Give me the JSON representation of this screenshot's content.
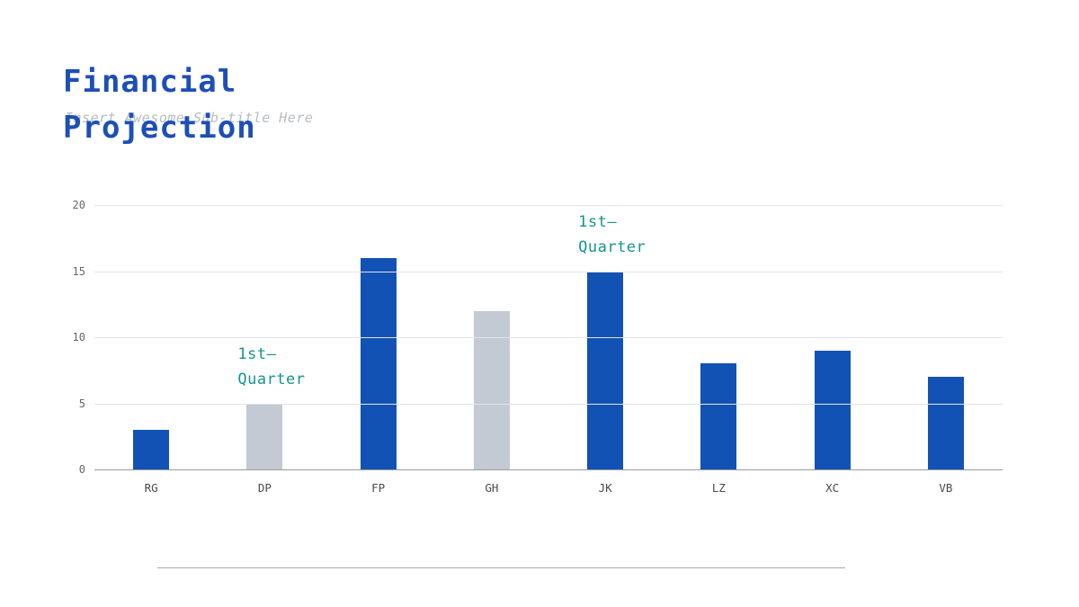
{
  "slide": {
    "title_line1": "Financial",
    "title_line2": "Projection",
    "subtitle": "Insert Awesome Sub-title Here"
  },
  "colors": {
    "title_blue": "#1d4fb5",
    "bar_blue": "#1252b4",
    "bar_gray": "#c3cad4",
    "annotation_teal": "#15948e",
    "gridline": "#e3e3e3",
    "axis_line": "#9b9b9b"
  },
  "chart_data": {
    "type": "bar",
    "categories": [
      "RG",
      "DP",
      "FP",
      "GH",
      "JK",
      "LZ",
      "XC",
      "VB"
    ],
    "values": [
      3,
      5,
      16,
      12,
      15,
      8,
      9,
      7
    ],
    "bar_colors": [
      "bar_blue",
      "bar_gray",
      "bar_blue",
      "bar_gray",
      "bar_blue",
      "bar_blue",
      "bar_blue",
      "bar_blue"
    ],
    "title": "Financial Projection",
    "xlabel": "",
    "ylabel": "",
    "ylim": [
      0,
      20
    ],
    "yticks": [
      0,
      5,
      10,
      15,
      20
    ],
    "grid": true,
    "legend": "none",
    "annotations": [
      {
        "target": "DP",
        "text": "1st—\nQuarter"
      },
      {
        "target": "JK",
        "text": "1st—\nQuarter"
      }
    ]
  }
}
